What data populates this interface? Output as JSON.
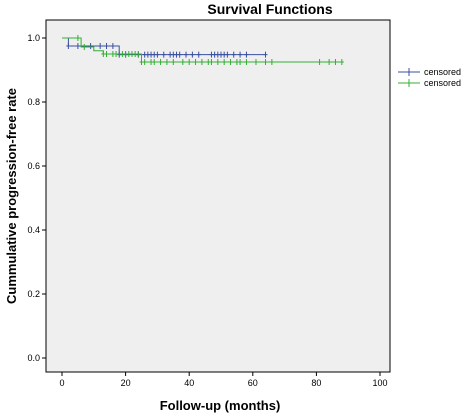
{
  "chart_data": {
    "type": "line",
    "title": "Survival Functions",
    "xlabel": "Follow-up (months)",
    "ylabel": "Cummulative progression-free rate",
    "xlim": [
      0,
      100
    ],
    "ylim": [
      0,
      1.0
    ],
    "xticks": [
      "0",
      "20",
      "40",
      "60",
      "80",
      "100"
    ],
    "yticks": [
      "0.0",
      "0.2",
      "0.4",
      "0.6",
      "0.8",
      "1.0"
    ],
    "legend_position": "right",
    "grid": false,
    "plot_background": "#efefef",
    "series": [
      {
        "name": "censored",
        "color": "#3a50a0",
        "steps": [
          [
            0,
            1.0
          ],
          [
            2,
            1.0
          ],
          [
            2,
            0.975
          ],
          [
            18,
            0.975
          ],
          [
            18,
            0.948
          ],
          [
            64,
            0.948
          ]
        ],
        "censored": [
          2,
          5,
          9,
          12,
          14,
          16,
          18,
          20,
          24,
          26,
          27,
          28,
          29,
          30,
          32,
          34,
          35,
          36,
          37,
          39,
          41,
          43,
          47,
          48,
          49,
          50,
          51,
          52,
          54,
          56,
          58,
          64
        ]
      },
      {
        "name": "censored",
        "color": "#30b030",
        "steps": [
          [
            0,
            1.0
          ],
          [
            6,
            1.0
          ],
          [
            6,
            0.972
          ],
          [
            10,
            0.972
          ],
          [
            10,
            0.96
          ],
          [
            13,
            0.96
          ],
          [
            13,
            0.95
          ],
          [
            25,
            0.95
          ],
          [
            25,
            0.925
          ],
          [
            88,
            0.925
          ]
        ],
        "censored": [
          5,
          7,
          13,
          14,
          16,
          17,
          19,
          20,
          21,
          22,
          23,
          24,
          25,
          26,
          28,
          29,
          31,
          33,
          35,
          38,
          40,
          42,
          44,
          46,
          47,
          49,
          51,
          53,
          55,
          56,
          58,
          61,
          64,
          66,
          81,
          84,
          86,
          88
        ]
      }
    ]
  }
}
